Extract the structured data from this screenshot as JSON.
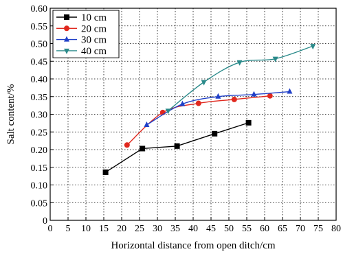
{
  "chart_data": {
    "type": "line",
    "title": "",
    "xlabel": "Horizontal distance from open ditch/cm",
    "ylabel": "Salt content/%",
    "xlim": [
      0,
      80
    ],
    "ylim": [
      0,
      0.6
    ],
    "xticks": [
      0,
      5,
      10,
      15,
      20,
      25,
      30,
      35,
      40,
      45,
      50,
      55,
      60,
      65,
      70,
      75,
      80
    ],
    "yticks": [
      "0",
      "0.05",
      "0.10",
      "0.15",
      "0.20",
      "0.25",
      "0.30",
      "0.35",
      "0.40",
      "0.45",
      "0.50",
      "0.55",
      "0.60"
    ],
    "grid": "dotted",
    "legend_position": "top-left",
    "series": [
      {
        "name": "10 cm",
        "color": "#000000",
        "marker": "square",
        "smooth": false,
        "x": [
          15.5,
          25.8,
          35.5,
          46.0,
          55.5
        ],
        "y": [
          0.136,
          0.203,
          0.21,
          0.245,
          0.276
        ]
      },
      {
        "name": "20 cm",
        "color": "#e0281e",
        "marker": "circle",
        "smooth": true,
        "x": [
          21.5,
          31.5,
          41.5,
          51.5,
          61.5
        ],
        "y": [
          0.213,
          0.305,
          0.331,
          0.342,
          0.352
        ]
      },
      {
        "name": "30 cm",
        "color": "#2040c8",
        "marker": "triangle-up",
        "smooth": true,
        "x": [
          27.0,
          37.0,
          47.0,
          57.0,
          67.0
        ],
        "y": [
          0.27,
          0.329,
          0.35,
          0.356,
          0.364
        ]
      },
      {
        "name": "40 cm",
        "color": "#2a8a8a",
        "marker": "triangle-down",
        "smooth": true,
        "x": [
          33.0,
          43.0,
          53.0,
          63.0,
          73.5
        ],
        "y": [
          0.31,
          0.391,
          0.447,
          0.457,
          0.493
        ]
      }
    ]
  }
}
